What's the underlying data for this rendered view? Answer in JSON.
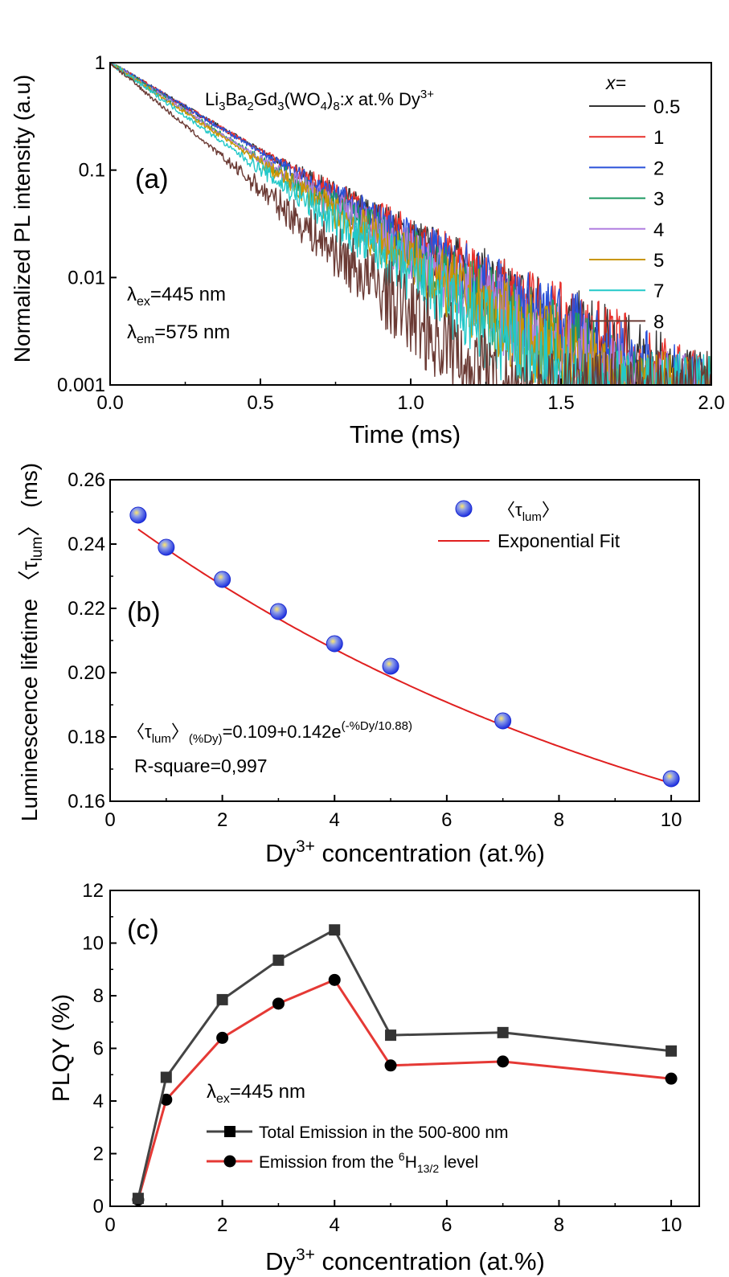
{
  "panel_a": {
    "label": "(a)",
    "title_parts": {
      "li": "Li",
      "s1": "3",
      "ba": "Ba",
      "s2": "2",
      "gd": "Gd",
      "s3": "3",
      "wo": "(WO",
      "s4": "4",
      "close": ")",
      "s5": "8",
      "colon": ":",
      "x": "x",
      "rest": " at.% Dy",
      "sup": "3+"
    },
    "legend_header": "x=",
    "excitation": {
      "sym": "λ",
      "sub": "ex",
      "text": "=445 nm"
    },
    "emission": {
      "sym": "λ",
      "sub": "em",
      "text": "=575 nm"
    },
    "ylabel": "Normalized PL intensity (a.u)",
    "xlabel": "Time (ms)"
  },
  "panel_b": {
    "label": "(b)",
    "ylabel_parts": {
      "a": "Luminescence lifetime ",
      "b": "〈τ",
      "sub": "lum",
      "c": "〉 (ms)"
    },
    "xlabel_parts": {
      "a": "Dy",
      "sup": "3+",
      "b": " concentration (at.%)"
    },
    "legend_points_parts": {
      "a": "〈τ",
      "sub": "lum",
      "b": "〉"
    },
    "legend_fit": "Exponential Fit",
    "equation_parts": {
      "a": "〈τ",
      "s1": "lum",
      "b": "〉",
      "s2": "(%Dy)",
      "c": "=0.109+0.142e",
      "sup": "(-%Dy/10.88)"
    },
    "rsq": "R-square=0,997"
  },
  "panel_c": {
    "label": "(c)",
    "ylabel": "PLQY (%)",
    "xlabel_parts": {
      "a": "Dy",
      "sup": "3+",
      "b": " concentration (at.%)"
    },
    "excitation": {
      "sym": "λ",
      "sub": "ex",
      "text": "=445 nm"
    },
    "legend_total": "Total Emission in the 500-800 nm",
    "legend_level_parts": {
      "a": "Emission from the ",
      "sup": "6",
      "b": "H",
      "sub": "13/2",
      "c": " level"
    }
  },
  "chart_data": [
    {
      "type": "line",
      "x_unit": "ms",
      "y_scale": "log",
      "xlim": [
        0,
        2.0
      ],
      "ylim": [
        0.001,
        1
      ],
      "x_ticks": [
        0.0,
        0.5,
        1.0,
        1.5,
        2.0
      ],
      "x_tick_labels": [
        "0.0",
        "0.5",
        "1.0",
        "1.5",
        "2.0"
      ],
      "y_ticks": [
        0.001,
        0.01,
        0.1,
        1
      ],
      "y_tick_labels": [
        "0.001",
        "0.01",
        "0.1",
        "1"
      ],
      "noise_floor": 0.001,
      "series": [
        {
          "name": "0.5",
          "color": "#333333",
          "tau": 0.2655
        },
        {
          "name": "1",
          "color": "#e8302b",
          "tau": 0.2655
        },
        {
          "name": "2",
          "color": "#2a52d9",
          "tau": 0.262
        },
        {
          "name": "3",
          "color": "#1e9a62",
          "tau": 0.243
        },
        {
          "name": "4",
          "color": "#b07ee0",
          "tau": 0.241
        },
        {
          "name": "5",
          "color": "#c89600",
          "tau": 0.234
        },
        {
          "name": "7",
          "color": "#22c8c8",
          "tau": 0.219
        },
        {
          "name": "8",
          "color": "#6b3a34",
          "tau": 0.185
        }
      ]
    },
    {
      "type": "scatter",
      "xlim": [
        0,
        10.5
      ],
      "ylim": [
        0.16,
        0.26
      ],
      "x_ticks": [
        0,
        2,
        4,
        6,
        8,
        10
      ],
      "x_tick_labels": [
        "0",
        "2",
        "4",
        "6",
        "8",
        "10"
      ],
      "y_ticks": [
        0.16,
        0.18,
        0.2,
        0.22,
        0.24,
        0.26
      ],
      "y_tick_labels": [
        "0.16",
        "0.18",
        "0.20",
        "0.22",
        "0.24",
        "0.26"
      ],
      "points": {
        "x": [
          0.5,
          1,
          2,
          3,
          4,
          5,
          7,
          10
        ],
        "y": [
          0.249,
          0.239,
          0.229,
          0.219,
          0.209,
          0.202,
          0.185,
          0.167
        ]
      },
      "fit": {
        "type": "exponential",
        "y0": 0.109,
        "A": 0.142,
        "t": 10.88,
        "x_range": [
          0.5,
          10
        ],
        "color": "#e02020"
      },
      "point_color": "#2b3ff0"
    },
    {
      "type": "line",
      "xlim": [
        0,
        10.5
      ],
      "ylim": [
        0,
        12
      ],
      "x_ticks": [
        0,
        2,
        4,
        6,
        8,
        10
      ],
      "x_tick_labels": [
        "0",
        "2",
        "4",
        "6",
        "8",
        "10"
      ],
      "y_ticks": [
        0,
        2,
        4,
        6,
        8,
        10,
        12
      ],
      "y_tick_labels": [
        "0",
        "2",
        "4",
        "6",
        "8",
        "10",
        "12"
      ],
      "x": [
        0.5,
        1,
        2,
        3,
        4,
        5,
        7,
        10
      ],
      "series": [
        {
          "name": "Total Emission in the 500-800 nm",
          "marker": "square",
          "color": "#333333",
          "line_color": "#444444",
          "values": [
            0.3,
            4.9,
            7.85,
            9.35,
            10.5,
            6.5,
            6.6,
            5.9
          ]
        },
        {
          "name": "Emission from the 6H13/2 level",
          "marker": "circle",
          "color": "#000000",
          "line_color": "#e53935",
          "values": [
            0.25,
            4.05,
            6.4,
            7.7,
            8.6,
            5.35,
            5.5,
            4.85
          ]
        }
      ]
    }
  ]
}
